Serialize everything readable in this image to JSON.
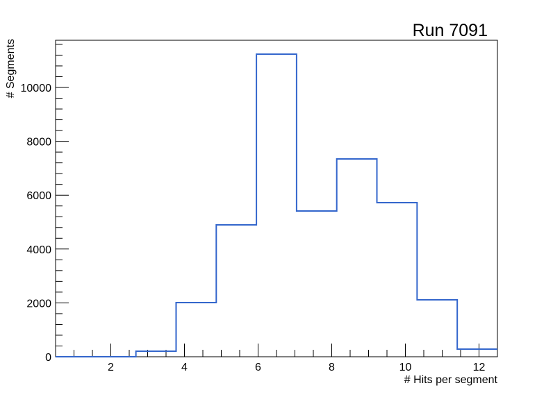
{
  "chart_data": {
    "type": "histogram",
    "title": "Run 7091",
    "xlabel": "# Hits per segment",
    "ylabel": "# Segments",
    "xlim": [
      0.5,
      12.5
    ],
    "ylim": [
      0,
      11800
    ],
    "bin_edges": [
      0.5,
      1.591,
      2.682,
      3.773,
      4.864,
      5.955,
      7.045,
      8.136,
      9.227,
      10.318,
      11.409,
      12.5
    ],
    "values": [
      0,
      0,
      206,
      2010,
      4897,
      11237,
      5412,
      7345,
      5722,
      2113,
      283
    ],
    "xticks": [
      2,
      4,
      6,
      8,
      10,
      12
    ],
    "xtick_labels": [
      "2",
      "4",
      "6",
      "8",
      "10",
      "12"
    ],
    "yticks": [
      0,
      2000,
      4000,
      6000,
      8000,
      10000
    ],
    "ytick_labels": [
      "0",
      "2000",
      "4000",
      "6000",
      "8000",
      "10000"
    ],
    "line_color": "#3366cc",
    "grid": false,
    "legend": "none"
  }
}
